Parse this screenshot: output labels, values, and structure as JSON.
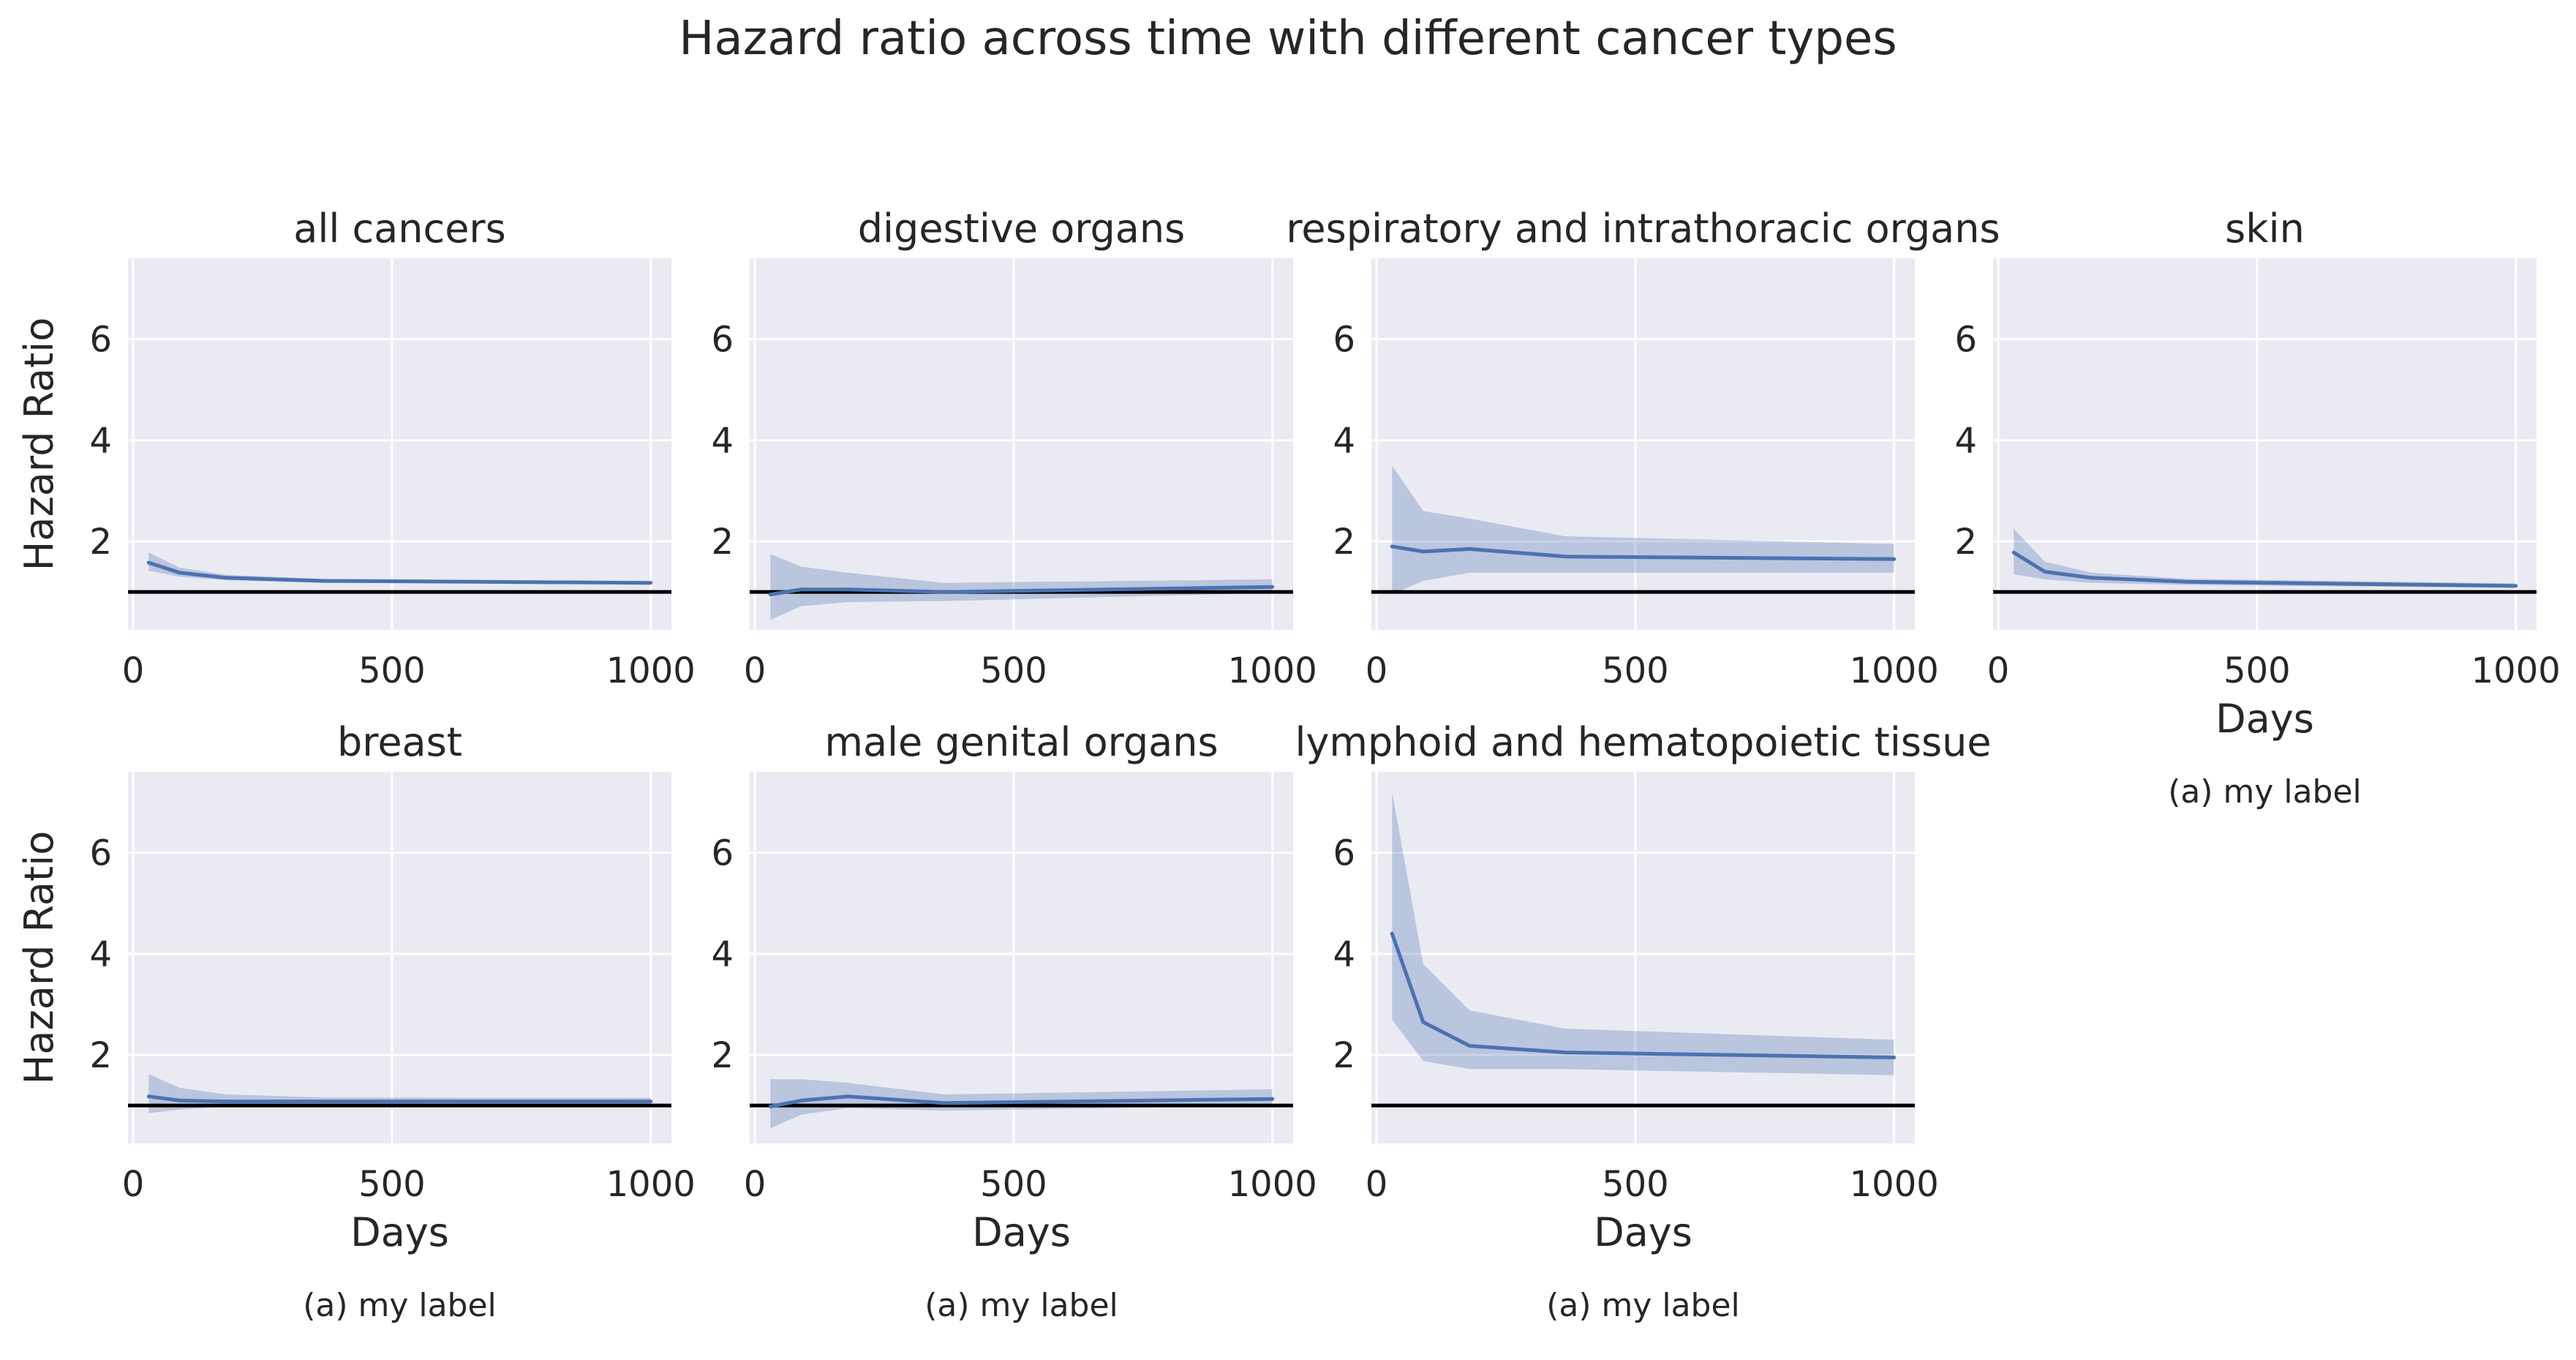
{
  "figure": {
    "title": "Hazard ratio across time with different cancer types"
  },
  "chart_data": [
    {
      "type": "line",
      "title": "all cancers",
      "xlabel": "",
      "ylabel": "Hazard Ratio",
      "sublabel": "",
      "xlim": [
        -10,
        1040
      ],
      "ylim": [
        0.25,
        7.6
      ],
      "xticks": [
        0,
        500,
        1000
      ],
      "yticks": [
        2,
        4,
        6
      ],
      "grid": true,
      "reference_line": 1,
      "x": [
        30,
        90,
        180,
        365,
        1000
      ],
      "series": [
        {
          "values": [
            1.58,
            1.38,
            1.28,
            1.22,
            1.18
          ],
          "lower": [
            1.42,
            1.3,
            1.23,
            1.18,
            1.15
          ],
          "upper": [
            1.78,
            1.48,
            1.34,
            1.26,
            1.21
          ]
        }
      ]
    },
    {
      "type": "line",
      "title": "digestive organs",
      "xlabel": "",
      "ylabel": "",
      "sublabel": "",
      "xlim": [
        -10,
        1040
      ],
      "ylim": [
        0.25,
        7.6
      ],
      "xticks": [
        0,
        500,
        1000
      ],
      "yticks": [
        2,
        4,
        6
      ],
      "grid": true,
      "reference_line": 1,
      "x": [
        30,
        90,
        180,
        365,
        1000
      ],
      "series": [
        {
          "values": [
            0.95,
            1.05,
            1.05,
            1.0,
            1.1
          ],
          "lower": [
            0.45,
            0.72,
            0.8,
            0.82,
            0.98
          ],
          "upper": [
            1.75,
            1.5,
            1.38,
            1.18,
            1.25
          ]
        }
      ]
    },
    {
      "type": "line",
      "title": "respiratory and intrathoracic organs",
      "xlabel": "",
      "ylabel": "",
      "sublabel": "",
      "xlim": [
        -10,
        1040
      ],
      "ylim": [
        0.25,
        7.6
      ],
      "xticks": [
        0,
        500,
        1000
      ],
      "yticks": [
        2,
        4,
        6
      ],
      "grid": true,
      "reference_line": 1,
      "x": [
        30,
        90,
        180,
        365,
        1000
      ],
      "series": [
        {
          "values": [
            1.9,
            1.8,
            1.85,
            1.7,
            1.65
          ],
          "lower": [
            0.95,
            1.22,
            1.38,
            1.38,
            1.38
          ],
          "upper": [
            3.5,
            2.6,
            2.45,
            2.1,
            1.95
          ]
        }
      ]
    },
    {
      "type": "line",
      "title": "skin",
      "xlabel": "Days",
      "ylabel": "",
      "sublabel": "(a) my label",
      "xlim": [
        -10,
        1040
      ],
      "ylim": [
        0.25,
        7.6
      ],
      "xticks": [
        0,
        500,
        1000
      ],
      "yticks": [
        2,
        4,
        6
      ],
      "grid": true,
      "reference_line": 1,
      "x": [
        30,
        90,
        180,
        365,
        1000
      ],
      "series": [
        {
          "values": [
            1.78,
            1.4,
            1.28,
            1.2,
            1.12
          ],
          "lower": [
            1.35,
            1.25,
            1.18,
            1.14,
            1.08
          ],
          "upper": [
            2.25,
            1.6,
            1.38,
            1.26,
            1.17
          ]
        }
      ]
    },
    {
      "type": "line",
      "title": "breast",
      "xlabel": "Days",
      "ylabel": "Hazard Ratio",
      "sublabel": "(a) my label",
      "xlim": [
        -10,
        1040
      ],
      "ylim": [
        0.25,
        7.6
      ],
      "xticks": [
        0,
        500,
        1000
      ],
      "yticks": [
        2,
        4,
        6
      ],
      "grid": true,
      "reference_line": 1,
      "x": [
        30,
        90,
        180,
        365,
        1000
      ],
      "series": [
        {
          "values": [
            1.18,
            1.1,
            1.08,
            1.08,
            1.08
          ],
          "lower": [
            0.85,
            0.92,
            0.98,
            1.0,
            1.02
          ],
          "upper": [
            1.62,
            1.35,
            1.22,
            1.16,
            1.15
          ]
        }
      ]
    },
    {
      "type": "line",
      "title": "male genital organs",
      "xlabel": "Days",
      "ylabel": "",
      "sublabel": "(a) my label",
      "xlim": [
        -10,
        1040
      ],
      "ylim": [
        0.25,
        7.6
      ],
      "xticks": [
        0,
        500,
        1000
      ],
      "yticks": [
        2,
        4,
        6
      ],
      "grid": true,
      "reference_line": 1,
      "x": [
        30,
        90,
        180,
        365,
        1000
      ],
      "series": [
        {
          "values": [
            0.98,
            1.1,
            1.18,
            1.05,
            1.13
          ],
          "lower": [
            0.55,
            0.82,
            0.95,
            0.9,
            1.0
          ],
          "upper": [
            1.52,
            1.52,
            1.45,
            1.22,
            1.32
          ]
        }
      ]
    },
    {
      "type": "line",
      "title": "lymphoid and hematopoietic tissue",
      "xlabel": "Days",
      "ylabel": "",
      "sublabel": "(a) my label",
      "xlim": [
        -10,
        1040
      ],
      "ylim": [
        0.25,
        7.6
      ],
      "xticks": [
        0,
        500,
        1000
      ],
      "yticks": [
        2,
        4,
        6
      ],
      "grid": true,
      "reference_line": 1,
      "x": [
        30,
        90,
        180,
        365,
        1000
      ],
      "series": [
        {
          "values": [
            4.4,
            2.65,
            2.18,
            2.05,
            1.95
          ],
          "lower": [
            2.7,
            1.88,
            1.72,
            1.72,
            1.6
          ],
          "upper": [
            7.2,
            3.8,
            2.88,
            2.52,
            2.3
          ]
        }
      ]
    }
  ]
}
